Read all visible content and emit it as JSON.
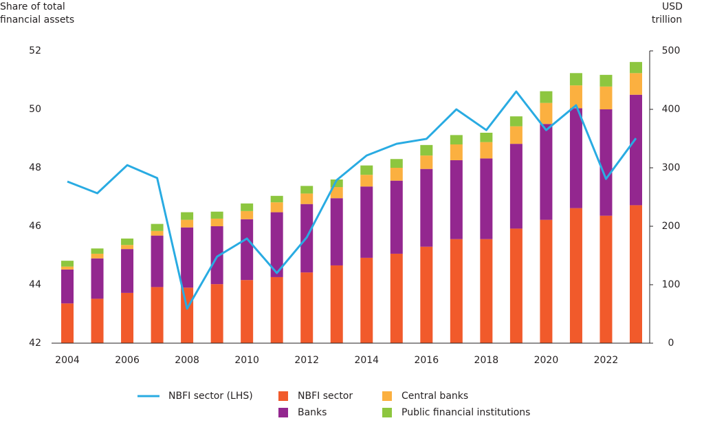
{
  "chart_data": {
    "type": "bar",
    "stacked": true,
    "y_label": [
      "Share of total",
      "financial assets"
    ],
    "y2_label": [
      "USD",
      "trillion"
    ],
    "categories": [
      "2004",
      null,
      "2006",
      null,
      "2008",
      null,
      "2010",
      null,
      "2012",
      null,
      "2014",
      null,
      "2016",
      null,
      "2018",
      null,
      "2020",
      null,
      "2022",
      null
    ],
    "ylim": [
      42,
      52
    ],
    "yticks": [
      42,
      44,
      46,
      48,
      50,
      52
    ],
    "y2lim": [
      0,
      500
    ],
    "y2ticks": [
      0,
      100,
      200,
      300,
      400,
      500
    ],
    "series": [
      {
        "name": "NBFI sector (LHS)",
        "type": "line",
        "color": "#29abe2",
        "axis": "y",
        "values": [
          47.53,
          47.13,
          48.09,
          47.65,
          43.18,
          44.96,
          45.58,
          44.4,
          45.62,
          47.58,
          48.42,
          48.82,
          48.99,
          50.0,
          49.29,
          50.61,
          49.29,
          50.14,
          47.62,
          49.01
        ]
      },
      {
        "name": "NBFI sector",
        "type": "bar",
        "color": "#f15a2b",
        "axis": "y2",
        "values": [
          68,
          76,
          86,
          96,
          95,
          101,
          108,
          113,
          121,
          133,
          146,
          153,
          165,
          178,
          178,
          196,
          211,
          231,
          218,
          236
        ]
      },
      {
        "name": "Banks",
        "type": "bar",
        "color": "#93278f",
        "axis": "y2",
        "values": [
          58,
          69,
          75,
          88,
          103,
          99,
          104,
          111,
          117,
          115,
          122,
          125,
          133,
          135,
          138,
          145,
          164,
          171,
          182,
          189
        ]
      },
      {
        "name": "Central banks",
        "type": "bar",
        "color": "#fbb040",
        "axis": "y2",
        "values": [
          5,
          8,
          7,
          8,
          13,
          13,
          14,
          17,
          18,
          19,
          20,
          22,
          23,
          27,
          28,
          30,
          36,
          39,
          39,
          37
        ]
      },
      {
        "name": "Public financial institutions",
        "type": "bar",
        "color": "#8dc63f",
        "axis": "y2",
        "values": [
          10,
          9,
          11,
          12,
          13,
          12,
          13,
          11,
          13,
          13,
          16,
          15,
          18,
          16,
          16,
          17,
          20,
          21,
          20,
          19
        ]
      }
    ]
  }
}
